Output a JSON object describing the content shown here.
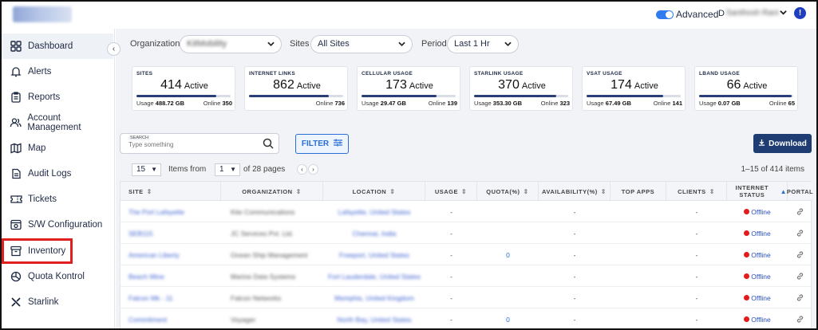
{
  "header": {
    "advanced_label": "Advanced",
    "user_initial": "D",
    "user_name": "Santhosh Rani",
    "alert_symbol": "!",
    "toggle_on": true
  },
  "sidebar": {
    "collapse_symbol": "‹",
    "items": [
      {
        "label": "Dashboard",
        "icon": "grid-icon",
        "active": true
      },
      {
        "label": "Alerts",
        "icon": "bell-icon"
      },
      {
        "label": "Reports",
        "icon": "report-icon"
      },
      {
        "label": "Account Management",
        "icon": "users-icon"
      },
      {
        "label": "Map",
        "icon": "map-icon"
      },
      {
        "label": "Audit Logs",
        "icon": "audit-log-icon"
      },
      {
        "label": "Tickets",
        "icon": "ticket-icon"
      },
      {
        "label": "S/W Configuration",
        "icon": "config-icon"
      },
      {
        "label": "Inventory",
        "icon": "inventory-icon",
        "highlighted": true
      },
      {
        "label": "Quota Kontrol",
        "icon": "quota-icon"
      },
      {
        "label": "Starlink",
        "icon": "starlink-icon"
      }
    ]
  },
  "filters": {
    "organization_label": "Organization",
    "organization_value": "KitMobility",
    "sites_label": "Sites",
    "sites_value": "All Sites",
    "period_label": "Period",
    "period_value": "Last 1 Hr"
  },
  "cards": [
    {
      "title": "SITES",
      "value": "414",
      "suffix": "Active",
      "left_label": "Usage",
      "left_value": "488.72 GB",
      "right_label": "Online",
      "right_value": "350",
      "fill": 0.85
    },
    {
      "title": "INTERNET LINKS",
      "value": "862",
      "suffix": "Active",
      "left_label": "",
      "left_value": "",
      "right_label": "Online",
      "right_value": "736",
      "fill": 0.85
    },
    {
      "title": "CELLULAR USAGE",
      "value": "173",
      "suffix": "Active",
      "left_label": "Usage",
      "left_value": "29.47 GB",
      "right_label": "Online",
      "right_value": "139",
      "fill": 0.8
    },
    {
      "title": "STARLINK USAGE",
      "value": "370",
      "suffix": "Active",
      "left_label": "Usage",
      "left_value": "353.30 GB",
      "right_label": "Online",
      "right_value": "323",
      "fill": 0.87
    },
    {
      "title": "VSAT USAGE",
      "value": "174",
      "suffix": "Active",
      "left_label": "Usage",
      "left_value": "67.49 GB",
      "right_label": "Online",
      "right_value": "141",
      "fill": 0.81
    },
    {
      "title": "LBAND USAGE",
      "value": "66",
      "suffix": "Active",
      "left_label": "Usage",
      "left_value": "0.07 GB",
      "right_label": "Online",
      "right_value": "65",
      "fill": 0.98
    }
  ],
  "toolbar": {
    "search_label": "SEARCH",
    "search_placeholder": "Type something",
    "filter_label": "FILTER",
    "download_label": "Download"
  },
  "pager": {
    "page_size": "15",
    "items_from_label": "Items from",
    "current_page": "1",
    "of_pages": "of 28 pages",
    "range_text": "1–15 of 414 items"
  },
  "table": {
    "columns": [
      "SITE",
      "ORGANIZATION",
      "LOCATION",
      "USAGE",
      "QUOTA(%)",
      "AVAILABILITY(%)",
      "TOP APPS",
      "CLIENTS",
      "INTERNET STATUS",
      "PORTAL"
    ],
    "rows": [
      {
        "site": "The Port Lafayette",
        "org": "Kite Communications",
        "loc": "Lafayette, United States",
        "usage": "-",
        "quota": "",
        "availability": "-",
        "top_apps": "",
        "clients": "-",
        "status": "Offline"
      },
      {
        "site": "SEB115",
        "org": "JC Services Pvt. Ltd.",
        "loc": "Chennai, India",
        "usage": "-",
        "quota": "",
        "availability": "-",
        "top_apps": "",
        "clients": "-",
        "status": "Offline"
      },
      {
        "site": "American Liberty",
        "org": "Ocean Ship Management",
        "loc": "Freeport, United States",
        "usage": "-",
        "quota": "0",
        "availability": "-",
        "top_apps": "",
        "clients": "-",
        "status": "Offline"
      },
      {
        "site": "Beach Mine",
        "org": "Marine Data Systems",
        "loc": "Fort Lauderdale, United States",
        "usage": "-",
        "quota": "",
        "availability": "-",
        "top_apps": "",
        "clients": "-",
        "status": "Offline"
      },
      {
        "site": "Falcon Mk - 11",
        "org": "Falcon Networks",
        "loc": "Memphis, United Kingdom",
        "usage": "-",
        "quota": "",
        "availability": "-",
        "top_apps": "",
        "clients": "-",
        "status": "Offline"
      },
      {
        "site": "Commitment",
        "org": "Voyager",
        "loc": "North Bay, United States",
        "usage": "-",
        "quota": "0",
        "availability": "-",
        "top_apps": "",
        "clients": "-",
        "status": "Offline"
      }
    ]
  }
}
